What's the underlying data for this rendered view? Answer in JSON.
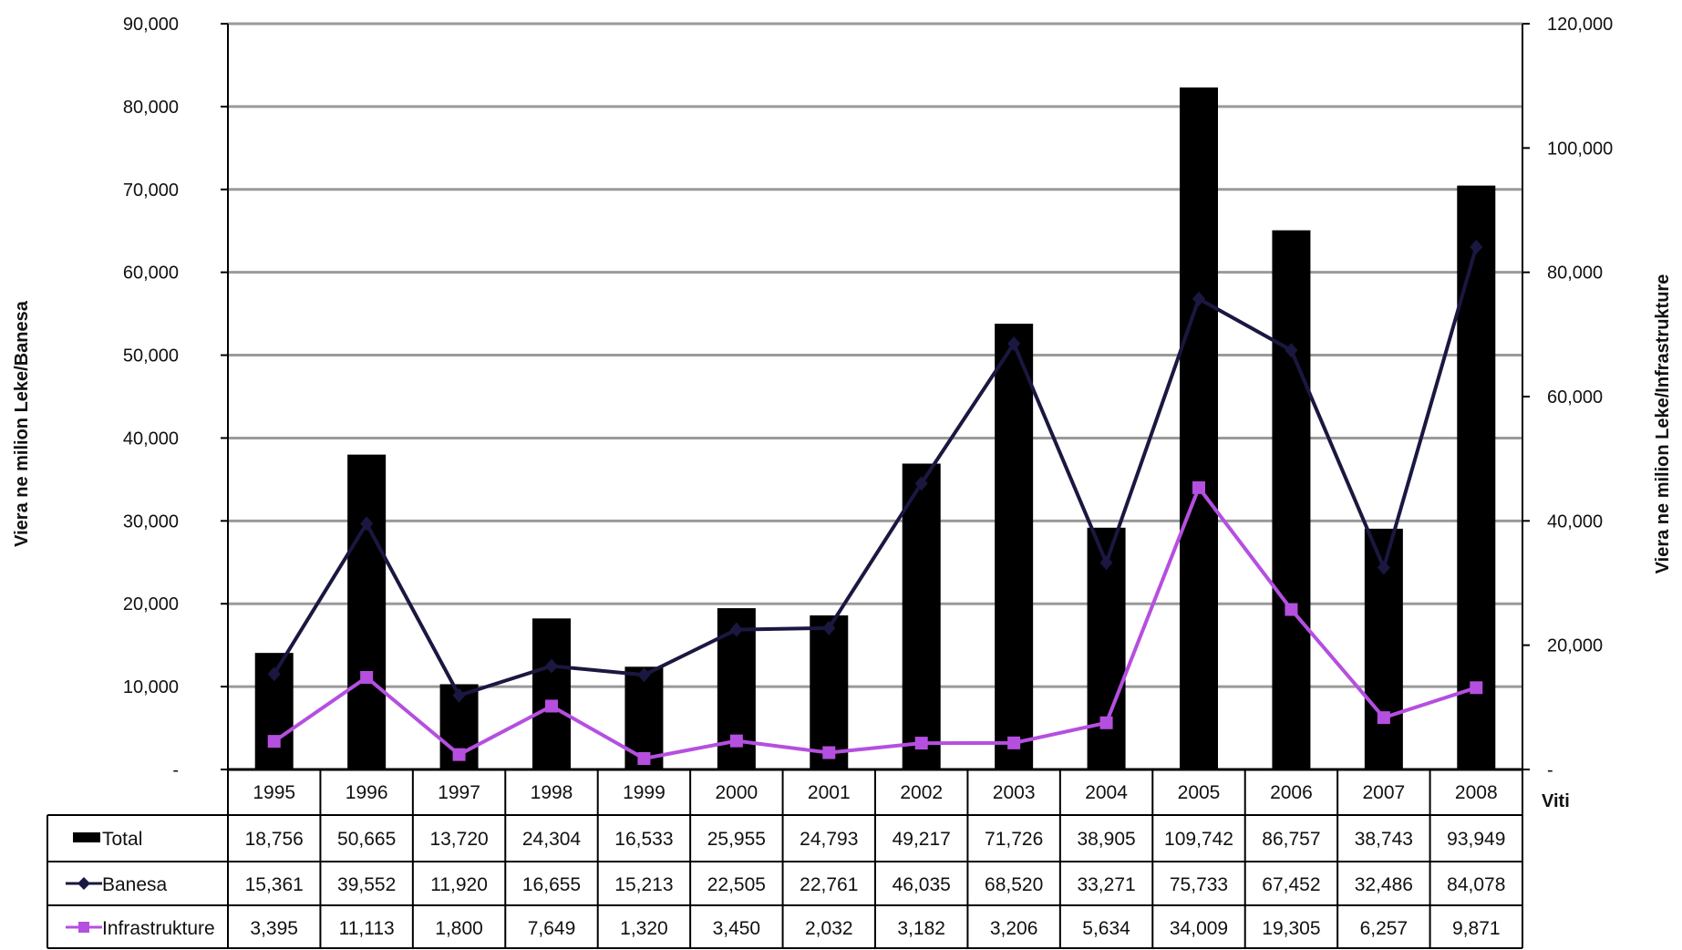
{
  "chart_data": {
    "type": "bar",
    "categories": [
      "1995",
      "1996",
      "1997",
      "1998",
      "1999",
      "2000",
      "2001",
      "2002",
      "2003",
      "2004",
      "2005",
      "2006",
      "2007",
      "2008"
    ],
    "xlabel": "Viti",
    "ylabel_left": "Viera ne milion Leke/Banesa",
    "ylabel_right": "Viera ne milion Leke/Infrastrukture",
    "ylim_left": [
      0,
      90000
    ],
    "ylim_right": [
      0,
      120000
    ],
    "left_ticks": [
      "-",
      "10,000",
      "20,000",
      "30,000",
      "40,000",
      "50,000",
      "60,000",
      "70,000",
      "80,000",
      "90,000"
    ],
    "right_ticks": [
      "-",
      "20,000",
      "40,000",
      "60,000",
      "80,000",
      "100,000",
      "120,000"
    ],
    "grid": true,
    "legend": "data-table",
    "series": [
      {
        "name": "Total",
        "kind": "bar",
        "axis": "right",
        "color": "#000000",
        "values": [
          18756,
          50665,
          13720,
          24304,
          16533,
          25955,
          24793,
          49217,
          71726,
          38905,
          109742,
          86757,
          38743,
          93949
        ],
        "labels": [
          "18,756",
          "50,665",
          "13,720",
          "24,304",
          "16,533",
          "25,955",
          "24,793",
          "49,217",
          "71,726",
          "38,905",
          "109,742",
          "86,757",
          "38,743",
          "93,949"
        ]
      },
      {
        "name": "Banesa",
        "kind": "line",
        "axis": "right",
        "color": "#1a1840",
        "marker": "diamond",
        "values": [
          15361,
          39552,
          11920,
          16655,
          15213,
          22505,
          22761,
          46035,
          68520,
          33271,
          75733,
          67452,
          32486,
          84078
        ],
        "labels": [
          "15,361",
          "39,552",
          "11,920",
          "16,655",
          "15,213",
          "22,505",
          "22,761",
          "46,035",
          "68,520",
          "33,271",
          "75,733",
          "67,452",
          "32,486",
          "84,078"
        ]
      },
      {
        "name": "Infrastrukture",
        "kind": "line",
        "axis": "left",
        "color": "#b54fe0",
        "marker": "square",
        "values": [
          3395,
          11113,
          1800,
          7649,
          1320,
          3450,
          2032,
          3182,
          3206,
          5634,
          34009,
          19305,
          6257,
          9871
        ],
        "labels": [
          "3,395",
          "11,113",
          "1,800",
          "7,649",
          "1,320",
          "3,450",
          "2,032",
          "3,182",
          "3,206",
          "5,634",
          "34,009",
          "19,305",
          "6,257",
          "9,871"
        ]
      }
    ]
  }
}
